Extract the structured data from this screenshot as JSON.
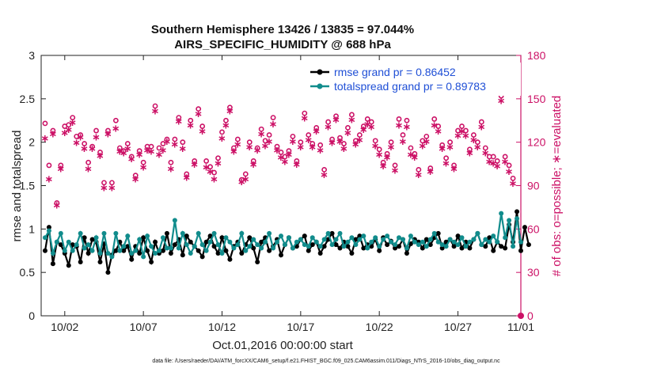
{
  "chart_data": {
    "type": "line",
    "title": "Southern Hemisphere 13426 / 13835 = 97.044%",
    "subtitle": "AIRS_SPECIFIC_HUMIDITY @ 688 hPa",
    "xlabel": "Oct.01,2016 00:00:00 start",
    "ylabel": "rmse and totalspread",
    "y2label": "# of obs: o=possible; ∗=evaluated",
    "xlim": [
      0.5,
      31.0
    ],
    "ylim": [
      0,
      3
    ],
    "y2lim": [
      0,
      180
    ],
    "x_ticks": [
      {
        "v": 2,
        "label": "10/02"
      },
      {
        "v": 7,
        "label": "10/07"
      },
      {
        "v": 12,
        "label": "10/12"
      },
      {
        "v": 17,
        "label": "10/17"
      },
      {
        "v": 22,
        "label": "10/22"
      },
      {
        "v": 27,
        "label": "10/27"
      },
      {
        "v": 32,
        "label": "11/01"
      }
    ],
    "y_ticks": [
      "0",
      "0.5",
      "1",
      "1.5",
      "2",
      "2.5",
      "3"
    ],
    "y_tick_values": [
      0,
      0.5,
      1,
      1.5,
      2,
      2.5,
      3
    ],
    "y2_ticks": [
      "0",
      "30",
      "60",
      "90",
      "120",
      "150",
      "180"
    ],
    "y2_tick_values": [
      0,
      30,
      60,
      90,
      120,
      150,
      180
    ],
    "grid": false,
    "legend_position": "top-right",
    "legend": [
      "rmse grand pr = 0.86452",
      "totalspread grand pr = 0.89783"
    ],
    "colors": {
      "rmse": "#000000",
      "totalspread": "#118c8c",
      "obs": "#cc1166",
      "legend_text": "#1f4fd6"
    },
    "x_start": 0.75,
    "x_step": 0.25,
    "series": [
      {
        "key": "rmse",
        "name": "rmse grand pr = 0.86452",
        "marker": "dot",
        "values": [
          0.75,
          1.02,
          0.6,
          0.85,
          0.82,
          0.72,
          0.58,
          0.82,
          0.8,
          0.62,
          0.9,
          0.72,
          0.88,
          0.85,
          0.62,
          0.83,
          0.5,
          0.7,
          0.75,
          0.85,
          0.75,
          0.8,
          0.65,
          0.8,
          0.72,
          0.9,
          0.75,
          0.62,
          0.85,
          0.72,
          0.75,
          0.95,
          0.72,
          0.82,
          0.88,
          0.7,
          0.92,
          0.85,
          0.8,
          0.75,
          0.68,
          0.85,
          0.92,
          0.8,
          0.72,
          0.9,
          0.75,
          0.65,
          0.8,
          0.85,
          0.72,
          0.82,
          0.9,
          0.78,
          0.62,
          0.85,
          0.9,
          0.75,
          0.8,
          0.88,
          0.7,
          0.82,
          0.9,
          0.78,
          0.8,
          0.88,
          0.92,
          0.75,
          0.82,
          0.85,
          0.72,
          0.8,
          0.88,
          0.95,
          0.82,
          0.78,
          0.85,
          0.8,
          0.72,
          0.88,
          0.92,
          0.78,
          0.82,
          0.8,
          0.88,
          0.75,
          0.9,
          0.82,
          0.86,
          0.78,
          0.8,
          0.88,
          0.72,
          0.83,
          0.88,
          0.85,
          0.78,
          0.88,
          0.82,
          0.9,
          0.95,
          0.78,
          0.85,
          0.88,
          0.8,
          0.92,
          0.78,
          0.85,
          0.78,
          0.88,
          0.95,
          0.82,
          0.8,
          0.9,
          0.75,
          0.85,
          0.8,
          0.78,
          1.05,
          0.85,
          1.2,
          0.75,
          1.02,
          0.82
        ]
      },
      {
        "key": "totalspread",
        "name": "totalspread grand pr = 0.89783",
        "marker": "dot",
        "values": [
          0.9,
          0.98,
          0.72,
          0.85,
          0.95,
          0.75,
          0.85,
          0.75,
          0.82,
          0.95,
          0.78,
          0.82,
          0.75,
          0.9,
          0.72,
          0.95,
          0.72,
          0.68,
          0.95,
          0.75,
          0.8,
          0.92,
          0.72,
          0.75,
          0.88,
          0.68,
          0.92,
          0.8,
          0.72,
          0.75,
          0.9,
          0.78,
          0.78,
          1.1,
          0.78,
          0.95,
          0.82,
          0.72,
          0.8,
          0.95,
          0.82,
          0.75,
          0.85,
          0.95,
          0.82,
          0.72,
          0.9,
          0.85,
          0.78,
          0.82,
          0.95,
          0.75,
          0.8,
          0.88,
          0.82,
          0.78,
          0.85,
          0.95,
          0.78,
          0.85,
          0.92,
          0.82,
          0.9,
          0.78,
          0.85,
          0.88,
          0.82,
          0.8,
          0.9,
          0.85,
          0.8,
          0.88,
          0.95,
          0.82,
          0.88,
          0.95,
          0.8,
          0.85,
          0.9,
          0.82,
          0.88,
          0.92,
          0.78,
          0.85,
          0.9,
          0.8,
          0.88,
          0.92,
          0.85,
          0.82,
          0.9,
          0.88,
          0.78,
          0.92,
          0.85,
          0.82,
          0.85,
          0.8,
          0.88,
          0.95,
          0.85,
          0.82,
          0.8,
          0.88,
          0.85,
          0.82,
          0.9,
          0.8,
          0.85,
          0.88,
          0.95,
          0.82,
          0.88,
          0.85,
          0.92,
          0.85,
          1.18,
          0.9,
          1.1,
          0.8,
          1.12,
          0.85
        ]
      },
      {
        "key": "possible",
        "name": "possible",
        "marker": "circle",
        "values": [
          133,
          104,
          128,
          78,
          104,
          131,
          132,
          137,
          124,
          125,
          119,
          106,
          117,
          128,
          113,
          92,
          128,
          92,
          135,
          116,
          114,
          119,
          110,
          97,
          114,
          106,
          117,
          117,
          145,
          116,
          119,
          122,
          106,
          122,
          137,
          120,
          98,
          135,
          107,
          143,
          131,
          107,
          103,
          99,
          109,
          127,
          135,
          144,
          116,
          122,
          94,
          98,
          120,
          107,
          116,
          129,
          121,
          125,
          137,
          117,
          113,
          110,
          114,
          124,
          107,
          120,
          140,
          125,
          119,
          130,
          118,
          101,
          134,
          122,
          138,
          123,
          119,
          130,
          139,
          121,
          125,
          131,
          136,
          134,
          121,
          115,
          106,
          112,
          120,
          104,
          136,
          125,
          135,
          116,
          112,
          101,
          121,
          124,
          102,
          136,
          131,
          118,
          109,
          120,
          104,
          128,
          131,
          128,
          115,
          125,
          120,
          134,
          116,
          110,
          110,
          107,
          152,
          110,
          104,
          95
        ]
      },
      {
        "key": "evaluated",
        "name": "evaluated",
        "marker": "star",
        "values": [
          123,
          95,
          126,
          77,
          102,
          127,
          129,
          134,
          120,
          124,
          116,
          102,
          116,
          124,
          111,
          89,
          126,
          89,
          130,
          114,
          113,
          116,
          109,
          95,
          112,
          103,
          115,
          114,
          142,
          112,
          115,
          121,
          102,
          119,
          135,
          116,
          96,
          132,
          105,
          140,
          128,
          103,
          100,
          95,
          106,
          123,
          132,
          142,
          114,
          119,
          93,
          95,
          117,
          105,
          115,
          126,
          118,
          121,
          133,
          115,
          110,
          107,
          112,
          121,
          105,
          117,
          137,
          122,
          117,
          128,
          115,
          98,
          131,
          120,
          136,
          121,
          116,
          127,
          136,
          119,
          122,
          129,
          133,
          131,
          118,
          112,
          104,
          110,
          117,
          101,
          132,
          121,
          131,
          112,
          110,
          98,
          118,
          121,
          100,
          132,
          128,
          116,
          106,
          117,
          102,
          125,
          128,
          125,
          113,
          122,
          117,
          131,
          113,
          107,
          106,
          104,
          149,
          107,
          100,
          92
        ]
      }
    ],
    "footnote": "data file: /Users/raeder/DAI/ATM_forcXX/CAM6_setup/f.e21.FHIST_BGC.f09_025.CAM6assim.011/Diags_NTrS_2016-10/obs_diag_output.nc"
  }
}
